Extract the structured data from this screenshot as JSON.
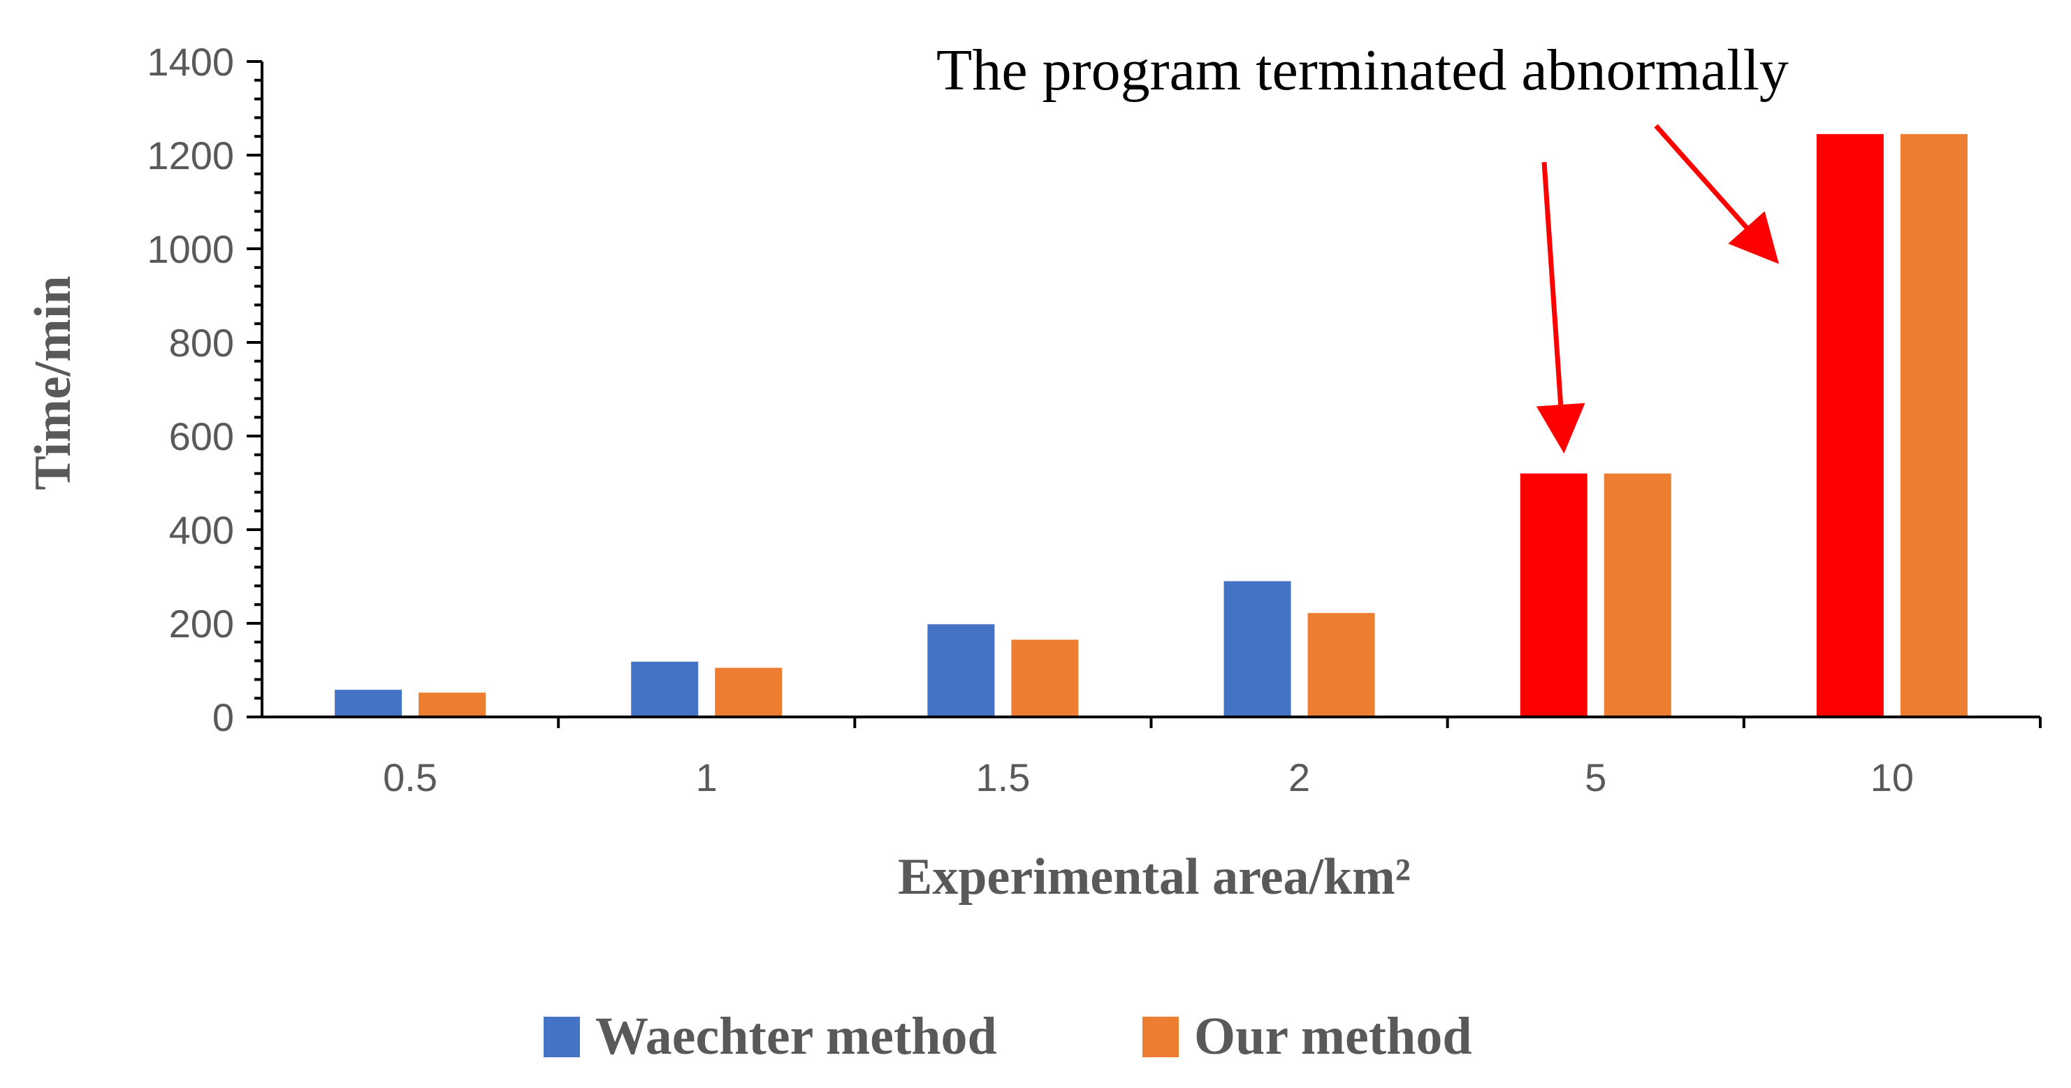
{
  "chart_data": {
    "type": "bar",
    "title": "",
    "xlabel": "Experimental area/km²",
    "ylabel": "Time/min",
    "categories": [
      "0.5",
      "1",
      "1.5",
      "2",
      "5",
      "10"
    ],
    "series": [
      {
        "name": "Waechter method",
        "values": [
          58,
          118,
          198,
          290,
          520,
          1245
        ],
        "color": "#4472C4",
        "highlight_color": "#FF0000",
        "highlighted": [
          false,
          false,
          false,
          false,
          true,
          true
        ]
      },
      {
        "name": "Our method",
        "values": [
          52,
          105,
          165,
          222,
          520,
          1245
        ],
        "color": "#ED7D31"
      }
    ],
    "ylim": [
      0,
      1400
    ],
    "yticks": [
      0,
      200,
      400,
      600,
      800,
      1000,
      1200,
      1400
    ],
    "grid": false,
    "legend": "bottom-center",
    "annotation": {
      "text": "The program terminated abnormally",
      "color": "#FF0000",
      "targets": [
        "5",
        "10"
      ]
    }
  }
}
